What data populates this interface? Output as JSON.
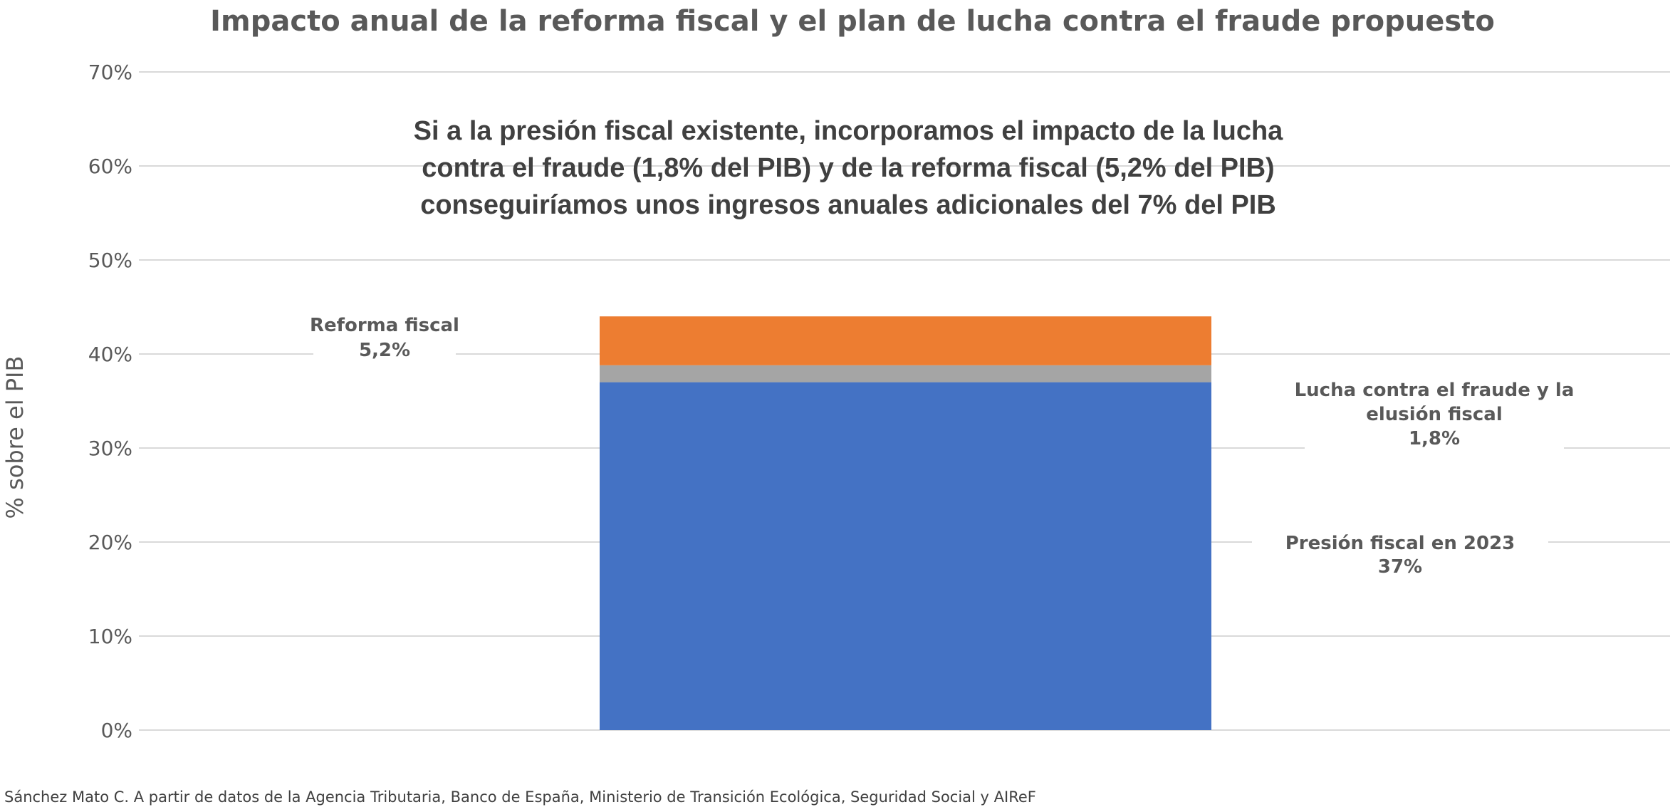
{
  "chart_data": {
    "type": "bar",
    "stacked": true,
    "title": "Impacto anual de la reforma fiscal y el plan de lucha contra el fraude propuesto",
    "ylabel": "% sobre el PIB",
    "xlabel": "",
    "ylim": [
      0,
      0.7
    ],
    "y_ticks": [
      "0%",
      "10%",
      "20%",
      "30%",
      "40%",
      "50%",
      "60%",
      "70%"
    ],
    "grid": true,
    "categories": [
      ""
    ],
    "series": [
      {
        "name": "Presión fiscal en 2023",
        "values": [
          0.37
        ],
        "color": "#4472C4",
        "label_lines": [
          "Presión fiscal en 2023",
          "37%"
        ]
      },
      {
        "name": "Lucha contra el fraude y la elusión fiscal",
        "values": [
          0.018
        ],
        "color": "#A5A5A5",
        "label_lines": [
          "Lucha contra el fraude y la",
          "elusión fiscal",
          "1,8%"
        ]
      },
      {
        "name": "Reforma fiscal",
        "values": [
          0.052
        ],
        "color": "#ED7D31",
        "label_lines": [
          "Reforma fiscal",
          "5,2%"
        ]
      }
    ],
    "annotation": [
      "Si a la presión fiscal existente, incorporamos el impacto de la lucha",
      "contra el fraude (1,8% del PIB) y de la reforma fiscal (5,2% del PIB)",
      "conseguiríamos unos ingresos anuales adicionales del 7% del PIB"
    ],
    "source": "Sánchez Mato C.  A partir de datos de la Agencia Tributaria, Banco de España, Ministerio de Transición Ecológica, Seguridad Social y AIReF"
  }
}
